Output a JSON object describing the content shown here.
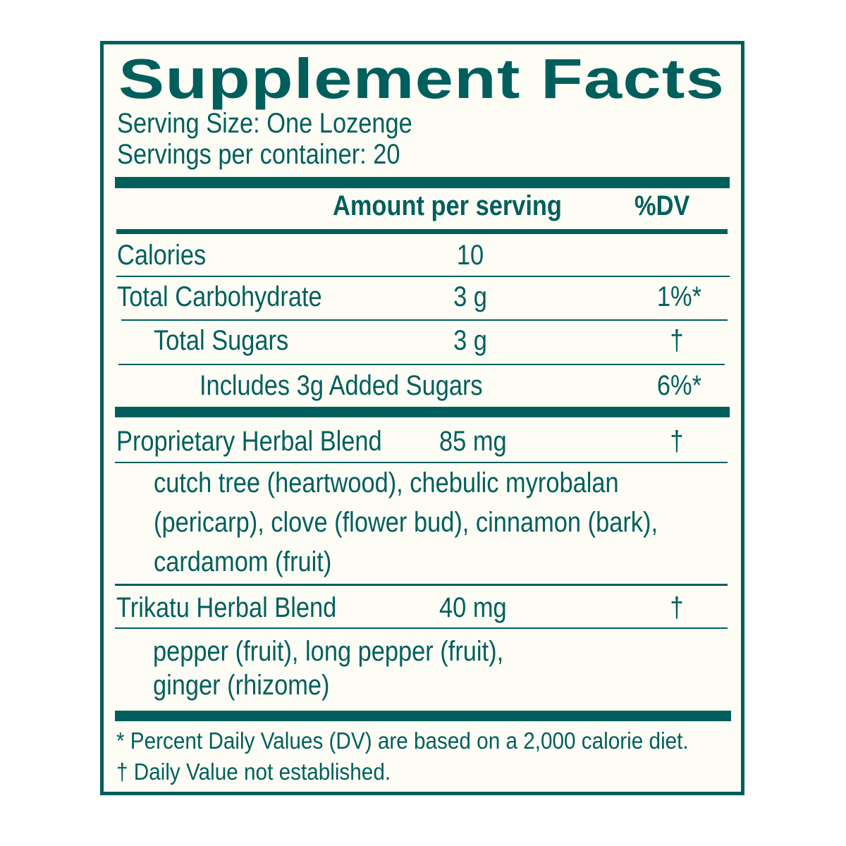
{
  "title": "Supplement Facts",
  "serving_size": "Serving Size: One Lozenge",
  "servings_per_container": "Servings per container: 20",
  "header": {
    "amount": "Amount per serving",
    "dv": "%DV"
  },
  "rows": [
    {
      "name": "Calories",
      "amount": "10",
      "dv": ""
    },
    {
      "name": "Total Carbohydrate",
      "amount": "3 g",
      "dv": "1%*"
    },
    {
      "name": "Total Sugars",
      "amount": "3 g",
      "dv": "†"
    },
    {
      "name": "Includes 3g Added Sugars",
      "amount": "",
      "dv": "6%*"
    }
  ],
  "blends": [
    {
      "name": "Proprietary Herbal Blend",
      "amount": "85 mg",
      "dv": "†",
      "ingredients": [
        "cutch tree (heartwood), chebulic myrobalan",
        "(pericarp), clove (flower bud), cinnamon (bark),",
        "cardamom (fruit)"
      ]
    },
    {
      "name": "Trikatu Herbal Blend",
      "amount": "40 mg",
      "dv": "†",
      "ingredients": [
        "pepper (fruit), long pepper (fruit),",
        "ginger (rhizome)"
      ]
    }
  ],
  "footnotes": [
    "* Percent Daily Values (DV) are based on a 2,000 calorie diet.",
    "† Daily Value not established."
  ],
  "colors": {
    "ink": "#005f5c",
    "background": "#fdfdf5"
  }
}
